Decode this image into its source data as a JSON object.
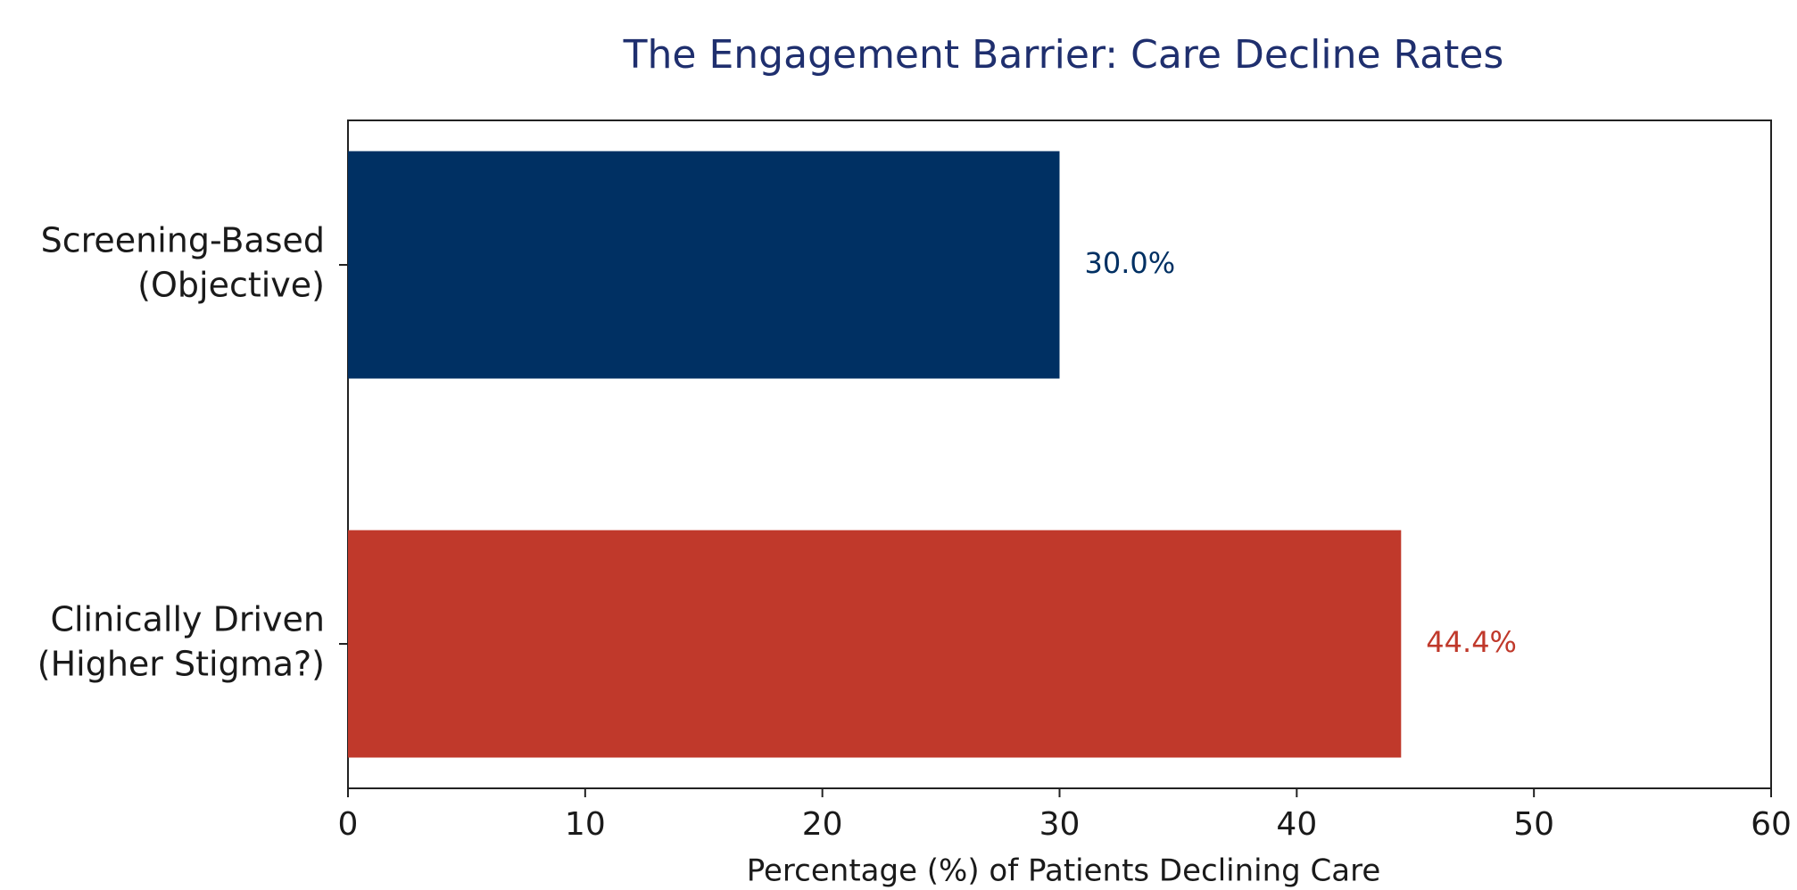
{
  "chart_data": {
    "type": "barh",
    "title": "The Engagement Barrier: Care Decline Rates",
    "categories": [
      [
        "Screening-Based",
        "(Objective)"
      ],
      [
        "Clinically Driven",
        "(Higher Stigma?)"
      ]
    ],
    "values": [
      30.0,
      44.4
    ],
    "value_labels": [
      "30.0%",
      "44.4%"
    ],
    "colors": [
      "#003063",
      "#c0392b"
    ],
    "xlabel": "Percentage (%) of Patients Declining Care",
    "xlim": [
      0,
      60
    ],
    "xticks": [
      0,
      10,
      20,
      30,
      40,
      50,
      60
    ]
  }
}
